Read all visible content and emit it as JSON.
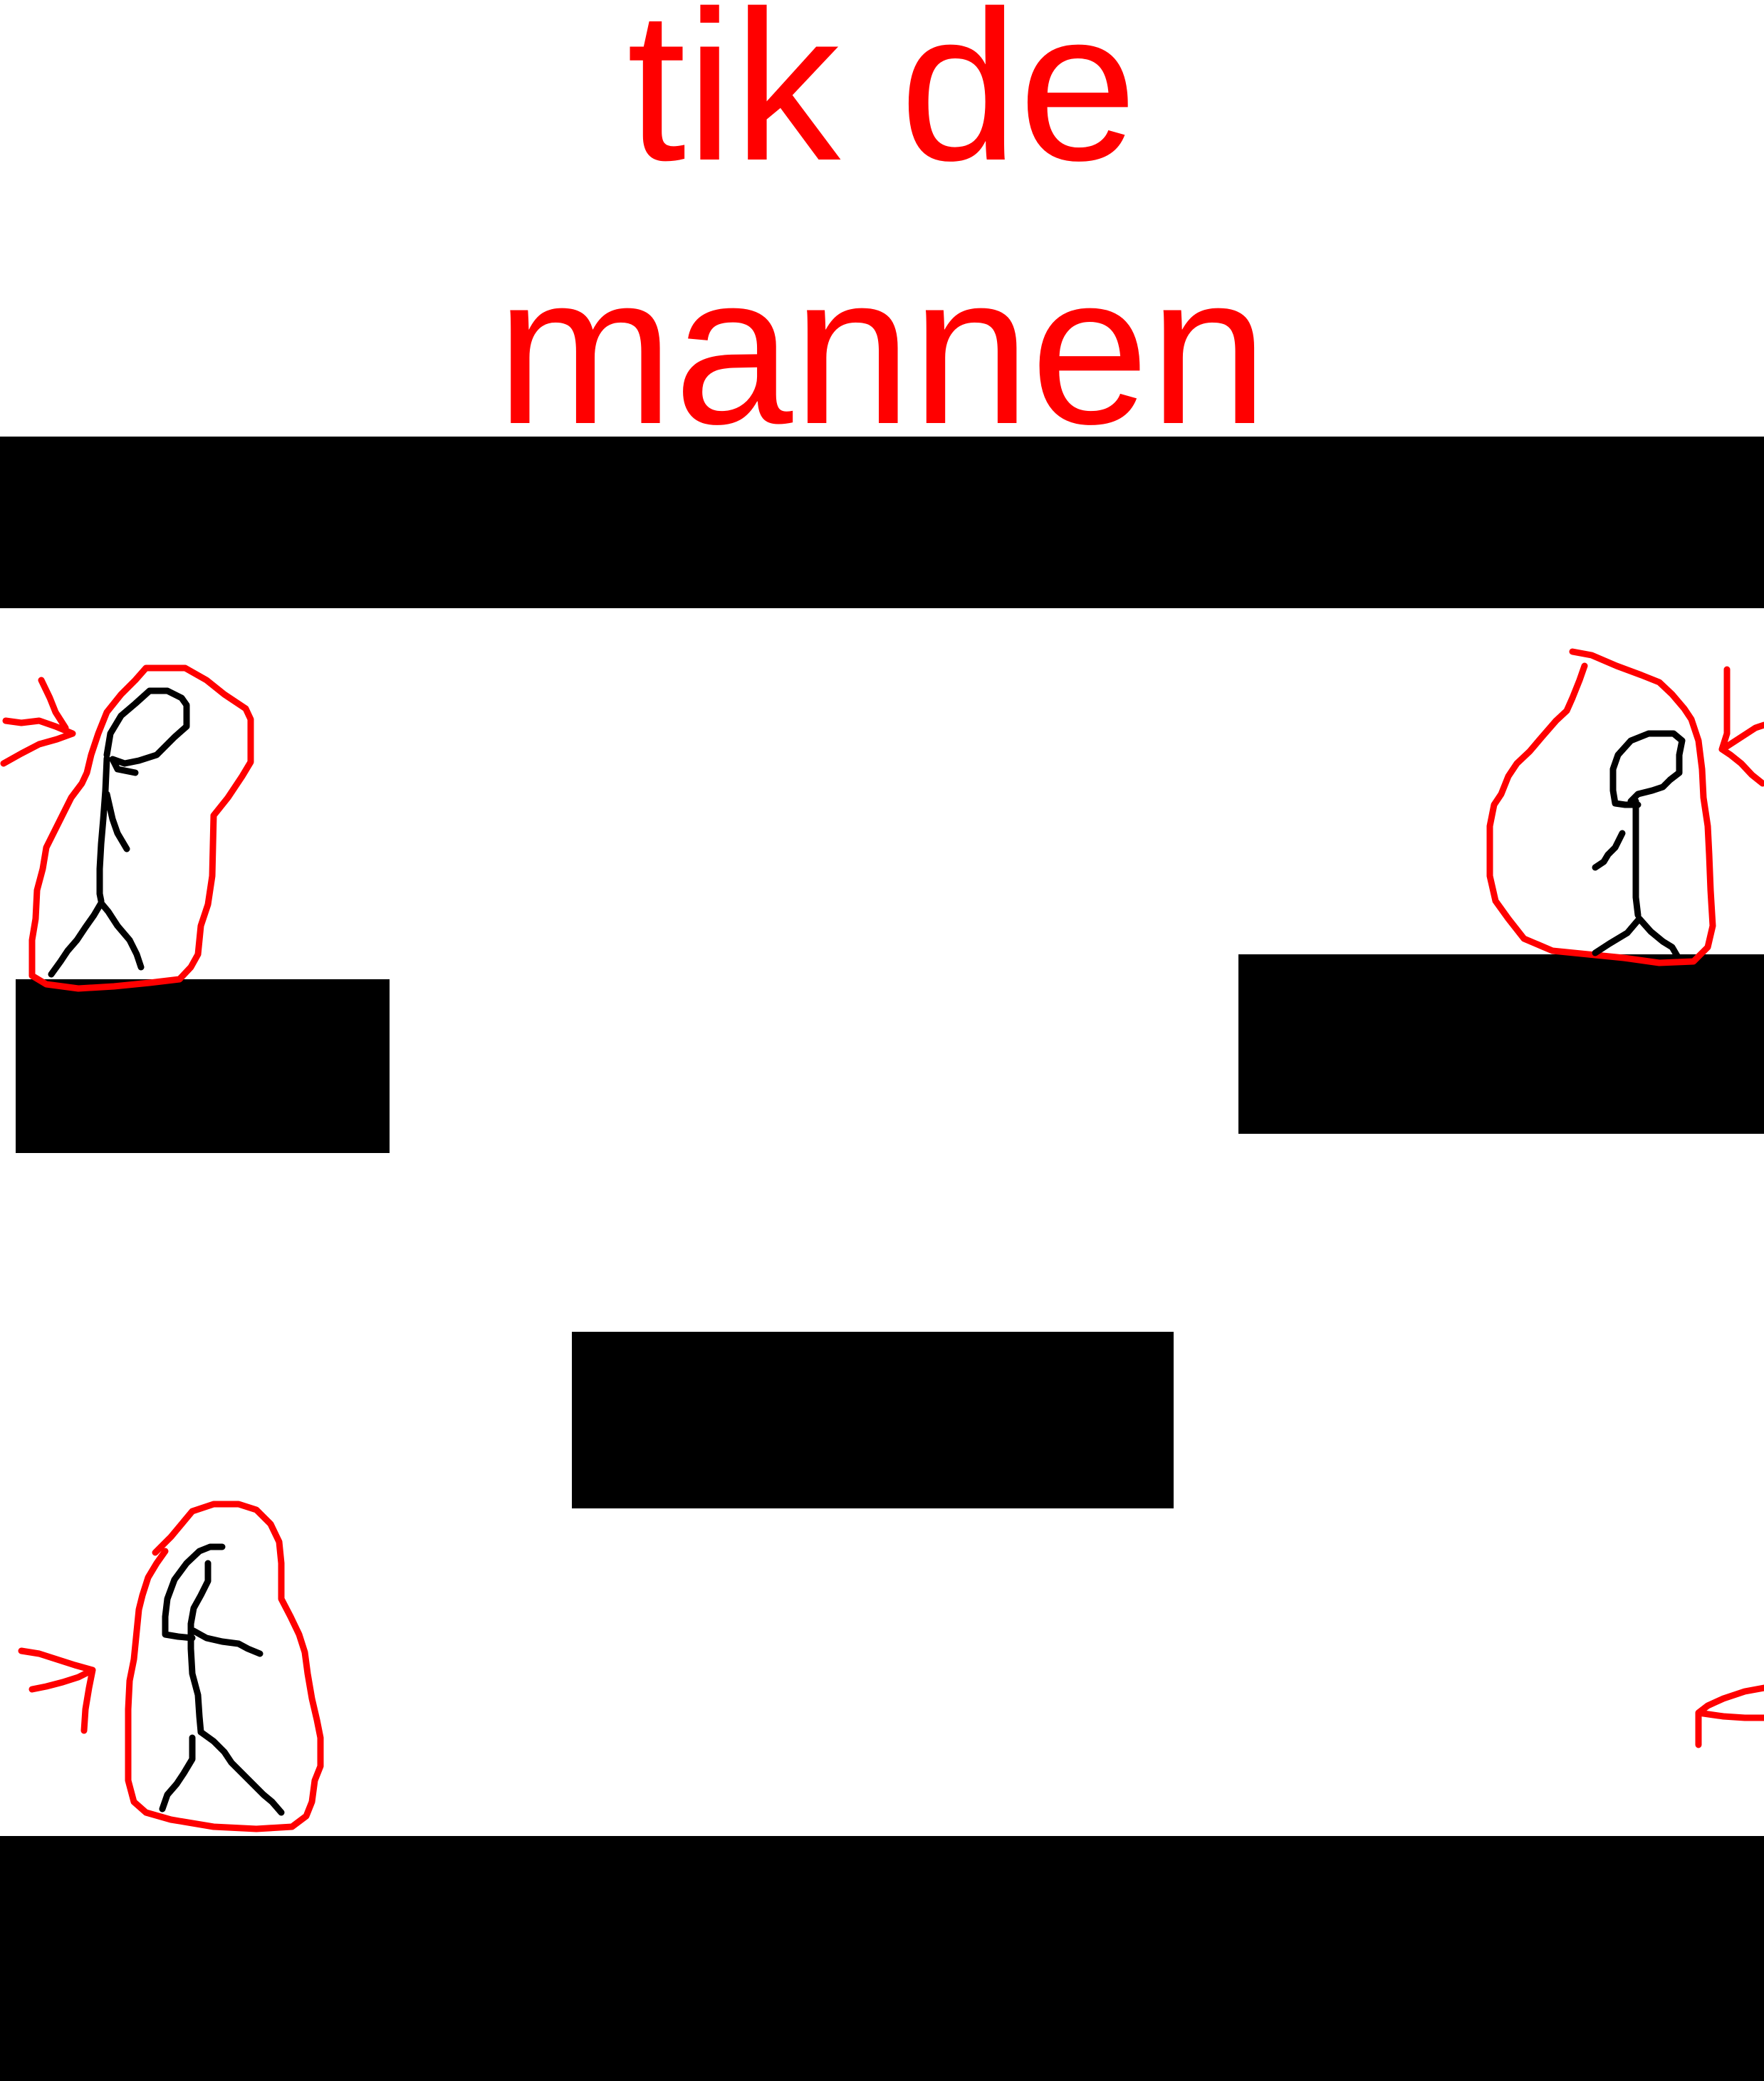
{
  "title": {
    "line1": "tik de",
    "line2": "mannen"
  },
  "colors": {
    "background": "#ffffff",
    "title": "#ff0000",
    "platform": "#000000",
    "marker": "#ff0000",
    "figure": "#000000"
  },
  "scene": {
    "platforms": [
      "ceiling",
      "left-ledge",
      "right-ledge",
      "middle-block",
      "floor"
    ],
    "characters": [
      {
        "name": "man-left-upper",
        "circled": true
      },
      {
        "name": "man-right-upper",
        "circled": true
      },
      {
        "name": "man-left-lower",
        "circled": true
      }
    ],
    "arrows": [
      "arrow-left-upper",
      "arrow-right-upper",
      "arrow-left-lower",
      "arrow-right-lower"
    ]
  }
}
